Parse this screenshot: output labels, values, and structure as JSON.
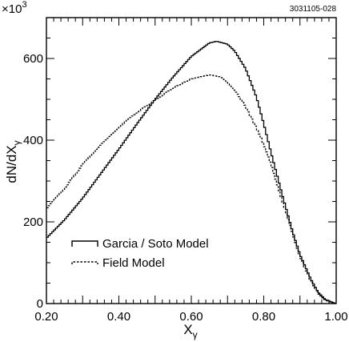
{
  "chart_data": {
    "type": "line",
    "figure_id": "3031105-028",
    "y_multiplier": "×10",
    "y_multiplier_exp": "3",
    "xlabel": "X",
    "xlabel_sub": "γ",
    "ylabel": "dN/dX",
    "ylabel_sub": "γ",
    "xlim": [
      0.2,
      1.0
    ],
    "ylim": [
      0,
      700
    ],
    "xticks": [
      0.2,
      0.4,
      0.6,
      0.8,
      1.0
    ],
    "xtick_labels": [
      "0.20",
      "0.40",
      "0.60",
      "0.80",
      "1.00"
    ],
    "yticks": [
      0,
      200,
      400,
      600
    ],
    "ytick_labels": [
      "0",
      "200",
      "400",
      "600"
    ],
    "grid": false,
    "legend_position": "bottom-left",
    "series": [
      {
        "name": "Garcia / Soto Model",
        "style": "solid",
        "x": [
          0.2,
          0.25,
          0.3,
          0.35,
          0.4,
          0.45,
          0.5,
          0.55,
          0.6,
          0.65,
          0.67,
          0.7,
          0.72,
          0.75,
          0.78,
          0.8,
          0.82,
          0.85,
          0.88,
          0.9,
          0.93,
          0.95,
          0.97,
          0.99,
          1.0
        ],
        "y": [
          160,
          205,
          258,
          318,
          378,
          440,
          500,
          555,
          605,
          638,
          642,
          635,
          618,
          575,
          505,
          440,
          370,
          270,
          175,
          120,
          60,
          28,
          10,
          3,
          0
        ]
      },
      {
        "name": "Field Model",
        "style": "dashed",
        "x": [
          0.2,
          0.25,
          0.3,
          0.35,
          0.4,
          0.45,
          0.5,
          0.55,
          0.6,
          0.65,
          0.68,
          0.7,
          0.73,
          0.75,
          0.78,
          0.8,
          0.82,
          0.85,
          0.88,
          0.9,
          0.93,
          0.95,
          0.97,
          0.99,
          1.0
        ],
        "y": [
          232,
          282,
          340,
          390,
          432,
          468,
          498,
          528,
          550,
          560,
          555,
          540,
          510,
          482,
          430,
          390,
          340,
          255,
          170,
          115,
          55,
          25,
          8,
          2,
          0
        ]
      }
    ]
  }
}
